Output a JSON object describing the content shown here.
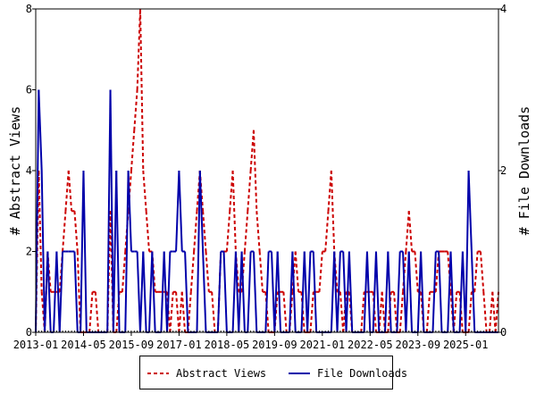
{
  "chart_data": {
    "type": "line",
    "title": "",
    "xlabel": "",
    "ylabel": "# Abstract Views",
    "y2label": "# File Downloads",
    "x_tick_labels": [
      "2013-01",
      "2014-05",
      "2015-09",
      "2017-01",
      "2018-05",
      "2019-09",
      "2021-01",
      "2022-05",
      "2023-09",
      "2025-01"
    ],
    "x_tick_months": [
      0,
      16,
      32,
      48,
      64,
      80,
      96,
      112,
      128,
      144
    ],
    "x_range_months": [
      0,
      155
    ],
    "ylim": [
      0,
      8
    ],
    "y_ticks": [
      0,
      2,
      4,
      6,
      8
    ],
    "y2lim": [
      0,
      4
    ],
    "y2_ticks": [
      0,
      2,
      4
    ],
    "grid": false,
    "legend_position": "bottom",
    "series": [
      {
        "name": "Abstract Views",
        "axis": "left",
        "color": "#cc0000",
        "style": "dashed",
        "values": [
          0,
          4,
          1,
          0,
          2,
          1,
          1,
          1,
          1,
          2,
          3,
          4,
          3,
          3,
          2,
          0,
          0,
          0,
          0,
          1,
          1,
          0,
          0,
          0,
          0,
          3,
          0,
          0,
          1,
          1,
          2,
          3,
          4,
          5,
          6,
          8,
          4,
          3,
          2,
          2,
          1,
          1,
          1,
          1,
          1,
          0,
          1,
          1,
          0,
          1,
          0,
          0,
          1,
          2,
          3,
          4,
          3,
          2,
          1,
          1,
          0,
          0,
          2,
          2,
          2,
          3,
          4,
          2,
          1,
          1,
          2,
          3,
          4,
          5,
          3,
          2,
          1,
          1,
          0,
          0,
          0,
          1,
          1,
          1,
          0,
          0,
          1,
          2,
          1,
          1,
          0,
          0,
          0,
          1,
          1,
          1,
          2,
          2,
          3,
          4,
          2,
          1,
          1,
          0,
          1,
          1,
          0,
          0,
          0,
          0,
          1,
          1,
          1,
          1,
          0,
          0,
          1,
          0,
          0,
          1,
          1,
          0,
          0,
          1,
          2,
          3,
          2,
          2,
          1,
          1,
          0,
          0,
          1,
          1,
          1,
          2,
          2,
          2,
          2,
          1,
          0,
          1,
          1,
          0,
          0,
          0,
          1,
          1,
          2,
          2,
          1,
          0,
          0,
          1,
          0,
          1
        ]
      },
      {
        "name": "File Downloads",
        "axis": "right",
        "color": "#0000aa",
        "style": "solid",
        "values": [
          0,
          3,
          2,
          0,
          1,
          0,
          0,
          1,
          0,
          1,
          1,
          1,
          1,
          1,
          0,
          0,
          2,
          0,
          0,
          0,
          0,
          0,
          0,
          0,
          0,
          3,
          0,
          2,
          0,
          0,
          0,
          2,
          1,
          1,
          1,
          0,
          1,
          0,
          0,
          1,
          0,
          0,
          0,
          1,
          0,
          1,
          1,
          1,
          2,
          1,
          1,
          0,
          0,
          0,
          0,
          2,
          1,
          0,
          0,
          0,
          0,
          0,
          1,
          1,
          0,
          0,
          0,
          1,
          0,
          1,
          0,
          0,
          1,
          1,
          0,
          0,
          0,
          0,
          1,
          1,
          0,
          1,
          0,
          0,
          0,
          0,
          1,
          0,
          0,
          0,
          1,
          0,
          1,
          1,
          0,
          0,
          0,
          0,
          0,
          0,
          1,
          0,
          1,
          1,
          0,
          1,
          0,
          0,
          0,
          0,
          0,
          1,
          0,
          0,
          1,
          0,
          0,
          0,
          1,
          0,
          0,
          0,
          1,
          1,
          0,
          1,
          0,
          0,
          0,
          1,
          0,
          0,
          0,
          0,
          1,
          1,
          0,
          0,
          0,
          1,
          0,
          0,
          0,
          1,
          0,
          2,
          1,
          0,
          0,
          0,
          0,
          0,
          0,
          0,
          0,
          0
        ]
      }
    ]
  }
}
